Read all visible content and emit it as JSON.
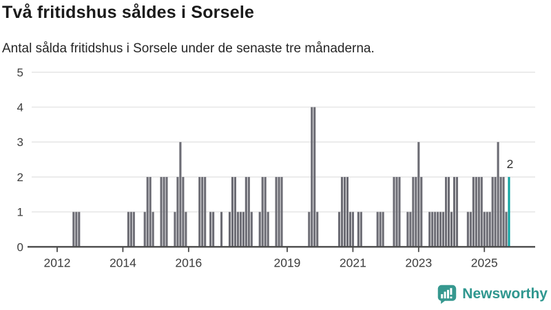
{
  "chart_data": {
    "type": "bar",
    "title": "Två fritidshus såldes i Sorsele",
    "subtitle": "Antal sålda fritidshus i Sorsele under de senaste tre månaderna.",
    "xlabel": "",
    "ylabel": "",
    "ylim": [
      0,
      5
    ],
    "y_ticks": [
      0,
      1,
      2,
      3,
      4,
      5
    ],
    "x_tick_years": [
      2012,
      2014,
      2016,
      2019,
      2021,
      2023,
      2025
    ],
    "grid": true,
    "legend": false,
    "x_domain_start": "2011-04",
    "x_domain_end": "2025-10",
    "series_by_year": {
      "2011": [
        0,
        0,
        0,
        0,
        0,
        0,
        0,
        0,
        0,
        0,
        0,
        0
      ],
      "2012": [
        0,
        0,
        0,
        0,
        0,
        0,
        1,
        1,
        1,
        0,
        0,
        0
      ],
      "2013": [
        0,
        0,
        0,
        0,
        0,
        0,
        0,
        0,
        0,
        0,
        0,
        0
      ],
      "2014": [
        0,
        0,
        1,
        1,
        1,
        0,
        0,
        0,
        1,
        2,
        2,
        1
      ],
      "2015": [
        0,
        0,
        2,
        2,
        2,
        0,
        0,
        1,
        2,
        3,
        2,
        1
      ],
      "2016": [
        0,
        0,
        0,
        0,
        2,
        2,
        2,
        0,
        1,
        1,
        0,
        0
      ],
      "2017": [
        1,
        0,
        0,
        1,
        2,
        2,
        1,
        1,
        1,
        2,
        2,
        1
      ],
      "2018": [
        0,
        0,
        1,
        2,
        2,
        1,
        0,
        0,
        2,
        2,
        2,
        0
      ],
      "2019": [
        0,
        0,
        0,
        0,
        0,
        0,
        0,
        0,
        1,
        4,
        4,
        1
      ],
      "2020": [
        0,
        0,
        0,
        0,
        0,
        0,
        0,
        1,
        2,
        2,
        2,
        1
      ],
      "2021": [
        1,
        0,
        1,
        1,
        0,
        0,
        0,
        0,
        0,
        1,
        1,
        1
      ],
      "2022": [
        0,
        0,
        0,
        2,
        2,
        2,
        0,
        0,
        1,
        1,
        2,
        2
      ],
      "2023": [
        3,
        2,
        0,
        0,
        1,
        1,
        1,
        1,
        1,
        1,
        2,
        2
      ],
      "2024": [
        1,
        2,
        2,
        0,
        0,
        0,
        1,
        1,
        2,
        2,
        2,
        2
      ],
      "2025": [
        1,
        1,
        1,
        2,
        2,
        3,
        2,
        2,
        1,
        2
      ]
    },
    "highlight": {
      "month": "2025-10",
      "value": 2,
      "label": "2"
    },
    "colors": {
      "bar": "#6c6c74",
      "highlight": "#0fa3a1",
      "grid": "#e7e7e7",
      "axis": "#4a4a4a",
      "axis_text": "#3d3d3d",
      "annotation_text": "#303030"
    }
  },
  "footer": {
    "brand": "Newsworthy",
    "brand_color": "#2f978f"
  }
}
